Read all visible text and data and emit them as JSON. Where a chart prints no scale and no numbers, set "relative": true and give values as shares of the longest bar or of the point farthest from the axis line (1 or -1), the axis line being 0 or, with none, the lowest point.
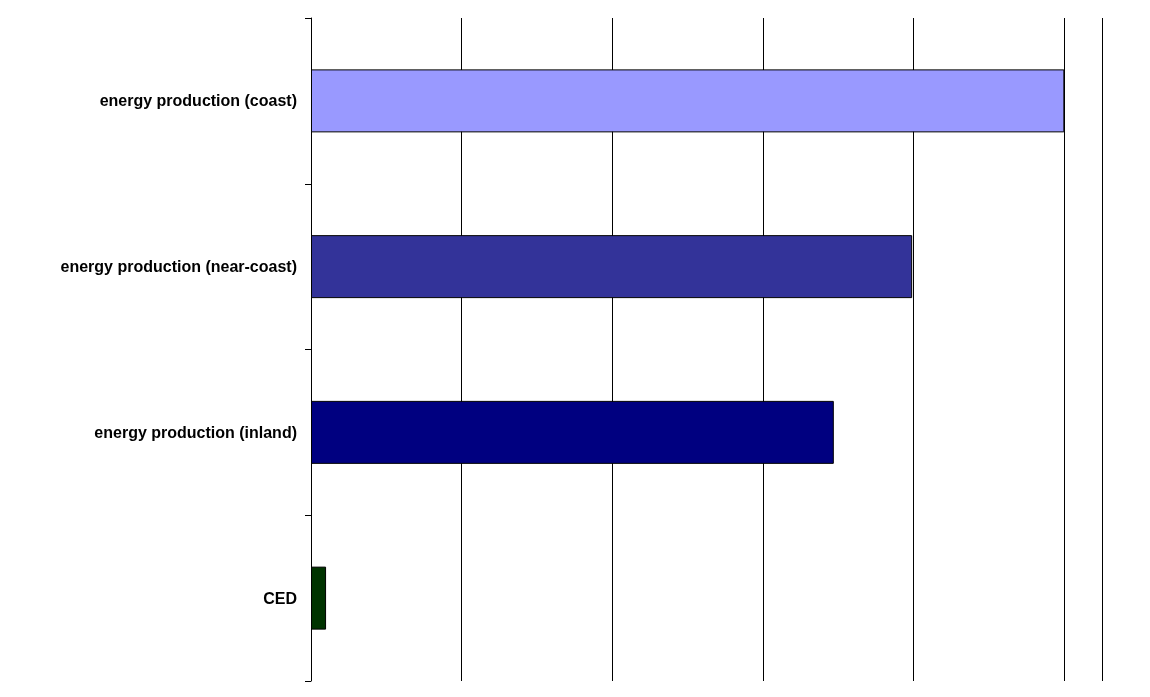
{
  "chart_data": {
    "type": "bar",
    "orientation": "horizontal",
    "relative": true,
    "categories": [
      "energy production (coast)",
      "energy production (near-coast)",
      "energy production (inland)",
      "CED"
    ],
    "values": [
      1,
      0.798,
      0.694,
      0.02
    ],
    "colors": [
      "#9999ff",
      "#333399",
      "#000080",
      "#003300"
    ],
    "grid": "x"
  }
}
